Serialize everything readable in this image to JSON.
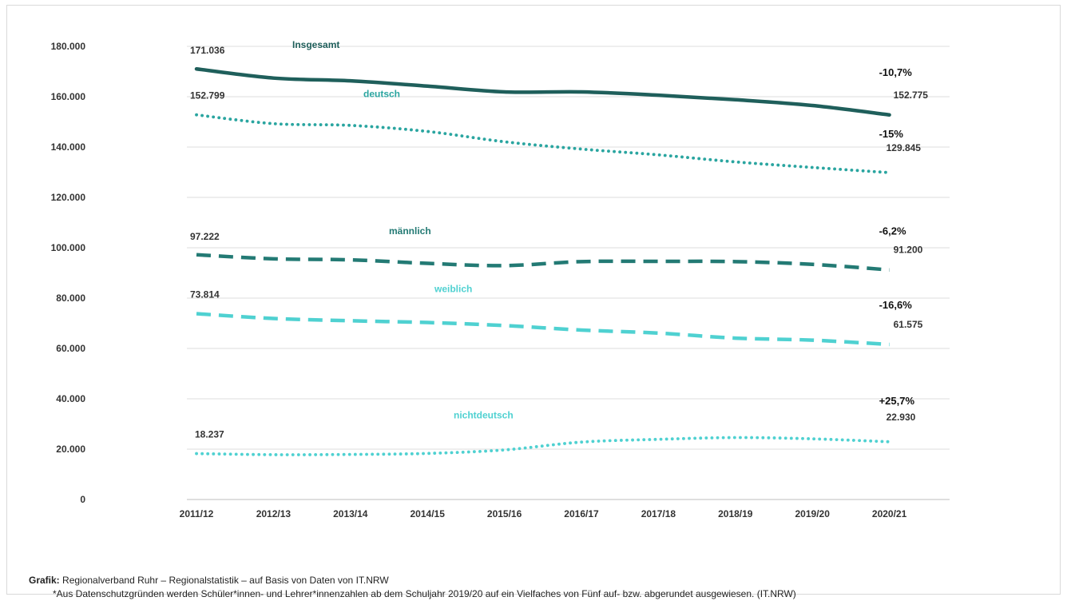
{
  "chart_data": {
    "type": "line",
    "categories": [
      "2011/12",
      "2012/13",
      "2013/14",
      "2014/15",
      "2015/16",
      "2016/17",
      "2017/18",
      "2018/19",
      "2019/20",
      "2020/21"
    ],
    "ylim": [
      0,
      180000
    ],
    "yticks": [
      0,
      20000,
      40000,
      60000,
      80000,
      100000,
      120000,
      140000,
      160000,
      180000
    ],
    "ytick_labels": [
      "0",
      "20.000",
      "40.000",
      "60.000",
      "80.000",
      "100.000",
      "120.000",
      "140.000",
      "160.000",
      "180.000"
    ],
    "grid": "horizontal",
    "series": [
      {
        "name": "Insgesamt",
        "style": "solid",
        "color": "#1f5f5b",
        "values": [
          171036,
          167400,
          166300,
          164200,
          161900,
          161900,
          160600,
          158800,
          156500,
          152775
        ],
        "start_label": "171.036",
        "end_label": "152.775",
        "change_label": "-10,7%"
      },
      {
        "name": "deutsch",
        "style": "dotted",
        "color": "#2aa5a0",
        "values": [
          152799,
          149300,
          148600,
          146200,
          142100,
          139200,
          136900,
          134100,
          131900,
          129845
        ],
        "start_label": "152.799",
        "end_label": "129.845",
        "change_label": "-15%"
      },
      {
        "name": "männlich",
        "style": "dashed",
        "color": "#237a74",
        "values": [
          97222,
          95600,
          95200,
          93800,
          92900,
          94500,
          94600,
          94500,
          93400,
          91200
        ],
        "start_label": "97.222",
        "end_label": "91.200",
        "change_label": "-6,2%"
      },
      {
        "name": "weiblich",
        "style": "dashed",
        "color": "#4fd1d1",
        "values": [
          73814,
          71900,
          71000,
          70300,
          69100,
          67300,
          66100,
          64100,
          63300,
          61575
        ],
        "start_label": "73.814",
        "end_label": "61.575",
        "change_label": "-16,6%"
      },
      {
        "name": "nichtdeutsch",
        "style": "dotted",
        "color": "#4fd1d1",
        "values": [
          18237,
          17800,
          17900,
          18300,
          19700,
          22800,
          23900,
          24600,
          24100,
          22930
        ],
        "start_label": "18.237",
        "end_label": "22.930",
        "change_label": "+25,7%"
      }
    ]
  },
  "footer": {
    "source_prefix": "Grafik:",
    "source_text": " Regionalverband Ruhr – Regionalstatistik – auf Basis von Daten von IT.NRW",
    "footnote": "*Aus Datenschutzgründen werden Schüler*innen- und Lehrer*innenzahlen ab dem Schuljahr 2019/20 auf ein Vielfaches von Fünf auf- bzw. abgerundet ausgewiesen. (IT.NRW)"
  }
}
